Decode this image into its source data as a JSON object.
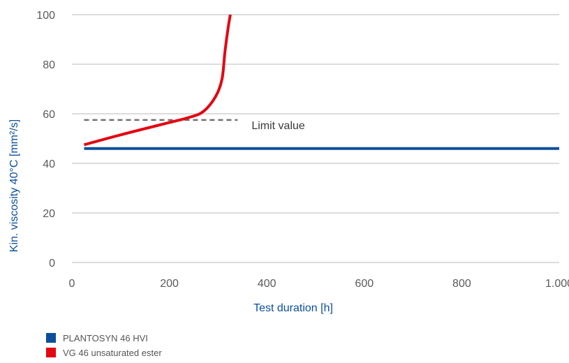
{
  "chart_data": {
    "type": "line",
    "xlabel": "Test duration [h]",
    "ylabel": "Kin. viscosity 40°C [mm²/s]",
    "xlim": [
      0,
      1000
    ],
    "ylim": [
      0,
      100
    ],
    "x_ticks": [
      {
        "value": 0,
        "label": "0"
      },
      {
        "value": 200,
        "label": "200"
      },
      {
        "value": 400,
        "label": "400"
      },
      {
        "value": 600,
        "label": "600"
      },
      {
        "value": 800,
        "label": "800"
      },
      {
        "value": 1000,
        "label": "1.000"
      }
    ],
    "y_ticks": [
      {
        "value": 0,
        "label": "0"
      },
      {
        "value": 20,
        "label": "20"
      },
      {
        "value": 40,
        "label": "40"
      },
      {
        "value": 60,
        "label": "60"
      },
      {
        "value": 80,
        "label": "80"
      },
      {
        "value": 100,
        "label": "100"
      }
    ],
    "grid": "horizontal",
    "legend_position": "bottom-left",
    "series": [
      {
        "name": "PLANTOSYN 46 HVI",
        "color": "#0b4f9c",
        "points": [
          [
            25,
            46
          ],
          [
            1000,
            46
          ]
        ]
      },
      {
        "name": "VG 46 unsaturated ester",
        "color": "#e30613",
        "points": [
          [
            25,
            47.5
          ],
          [
            100,
            51.5
          ],
          [
            180,
            55.5
          ],
          [
            240,
            58.5
          ],
          [
            270,
            61
          ],
          [
            295,
            67
          ],
          [
            308,
            74
          ],
          [
            314,
            85
          ],
          [
            320,
            94
          ],
          [
            325,
            100
          ]
        ]
      }
    ],
    "reference_line": {
      "label": "Limit value",
      "y": 57.5,
      "x_range": [
        25,
        340
      ],
      "color": "#707070"
    }
  }
}
